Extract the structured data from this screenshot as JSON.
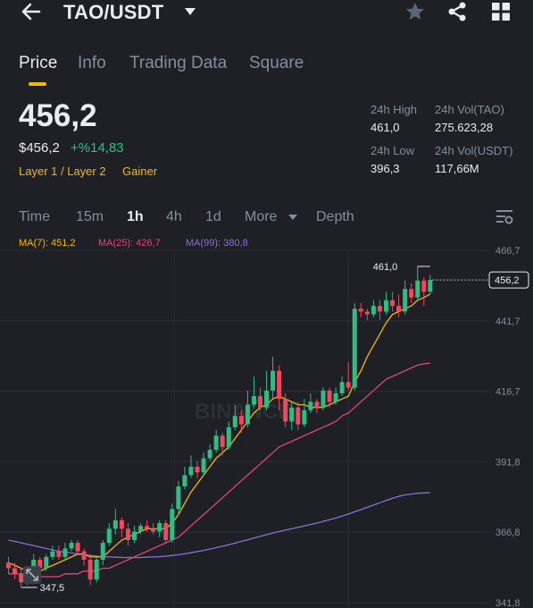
{
  "header": {
    "pair": "TAO/USDT"
  },
  "tabs": [
    {
      "label": "Price"
    },
    {
      "label": "Info"
    },
    {
      "label": "Trading Data"
    },
    {
      "label": "Square"
    }
  ],
  "price": {
    "last": "456,2",
    "usd": "$456,2",
    "change": "+%14,83",
    "tags": [
      "Layer 1 / Layer 2",
      "Gainer"
    ]
  },
  "stats": {
    "high_label": "24h High",
    "high_value": "461,0",
    "low_label": "24h Low",
    "low_value": "396,3",
    "vol_base_label": "24h Vol(TAO)",
    "vol_base_value": "275.623,28",
    "vol_quote_label": "24h Vol(USDT)",
    "vol_quote_value": "117,66M"
  },
  "intervals": {
    "items": [
      "Time",
      "15m",
      "1h",
      "4h",
      "1d",
      "More",
      "Depth"
    ],
    "selected": "1h"
  },
  "ma_legend": {
    "ma7": "MA(7): 451,2",
    "ma25": "MA(25): 426,7",
    "ma99": "MA(99): 380,8"
  },
  "colors": {
    "up": "#2ebd85",
    "down": "#f6465d",
    "accent": "#f0b90b",
    "ma7": "#f0b90b",
    "ma25": "#e0457b",
    "ma99": "#8c6fd6"
  },
  "chart_data": {
    "type": "candlestick",
    "y_axis_ticks": [
      "466,7",
      "441,7",
      "416,7",
      "391,8",
      "366,8",
      "341,8"
    ],
    "ylim": [
      341.8,
      466.7
    ],
    "high_marker": "461,0",
    "low_marker": "347,5",
    "last_price_label": "456,2",
    "watermark": "BINANCE",
    "candles": [
      [
        356,
        354,
        358,
        352
      ],
      [
        354,
        352,
        356,
        350
      ],
      [
        352,
        349,
        354,
        347.5
      ],
      [
        349,
        351,
        352,
        348
      ],
      [
        351,
        357,
        359,
        350
      ],
      [
        357,
        354,
        358,
        353
      ],
      [
        354,
        358,
        359,
        353
      ],
      [
        358,
        360,
        362,
        357
      ],
      [
        360,
        358,
        362,
        357
      ],
      [
        358,
        361,
        363,
        357
      ],
      [
        361,
        363,
        364,
        360
      ],
      [
        363,
        360,
        364,
        359
      ],
      [
        360,
        357,
        361,
        355
      ],
      [
        357,
        350,
        359,
        348
      ],
      [
        350,
        357,
        358,
        349
      ],
      [
        357,
        363,
        364,
        355
      ],
      [
        363,
        368,
        370,
        362
      ],
      [
        368,
        371,
        375,
        366
      ],
      [
        371,
        368,
        372,
        365
      ],
      [
        368,
        364,
        370,
        362
      ],
      [
        364,
        367,
        369,
        363
      ],
      [
        367,
        369,
        370,
        366
      ],
      [
        369,
        368,
        371,
        367
      ],
      [
        368,
        367,
        370,
        366
      ],
      [
        367,
        370,
        371,
        365
      ],
      [
        370,
        364,
        371,
        363
      ],
      [
        364,
        375,
        377,
        363
      ],
      [
        375,
        383,
        385,
        373
      ],
      [
        383,
        387,
        390,
        382
      ],
      [
        387,
        390,
        394,
        386
      ],
      [
        390,
        388,
        392,
        386
      ],
      [
        388,
        393,
        395,
        387
      ],
      [
        393,
        396,
        398,
        392
      ],
      [
        396,
        401,
        403,
        395
      ],
      [
        401,
        397,
        402,
        394
      ],
      [
        397,
        404,
        406,
        396
      ],
      [
        404,
        408,
        412,
        403
      ],
      [
        408,
        405,
        410,
        402
      ],
      [
        405,
        412,
        417,
        404
      ],
      [
        412,
        415,
        422,
        411
      ],
      [
        415,
        411,
        418,
        410
      ],
      [
        411,
        417,
        424,
        410
      ],
      [
        417,
        424,
        429,
        414
      ],
      [
        424,
        414,
        426,
        410
      ],
      [
        414,
        406,
        416,
        404
      ],
      [
        406,
        411,
        413,
        403
      ],
      [
        411,
        405,
        413,
        403
      ],
      [
        405,
        410,
        414,
        404
      ],
      [
        410,
        413,
        416,
        409
      ],
      [
        413,
        411,
        414,
        409
      ],
      [
        411,
        417,
        418,
        410
      ],
      [
        417,
        413,
        418,
        411
      ],
      [
        413,
        416,
        418,
        412
      ],
      [
        416,
        420,
        422,
        415
      ],
      [
        420,
        418,
        427,
        417
      ],
      [
        418,
        446,
        448,
        417
      ],
      [
        446,
        445,
        448,
        443
      ],
      [
        445,
        444,
        446,
        442
      ],
      [
        444,
        447,
        449,
        443
      ],
      [
        447,
        445,
        449,
        442
      ],
      [
        445,
        449,
        452,
        444
      ],
      [
        449,
        447,
        452,
        445
      ],
      [
        447,
        445,
        451,
        443
      ],
      [
        445,
        453,
        456,
        444
      ],
      [
        453,
        450,
        455,
        448
      ],
      [
        450,
        456,
        461,
        449
      ],
      [
        456,
        452,
        457,
        447
      ],
      [
        452,
        456.2,
        458,
        451
      ]
    ],
    "ma7": [
      356,
      355,
      354,
      353,
      353,
      353,
      354,
      355,
      356,
      357,
      358,
      359,
      359,
      358,
      358,
      358,
      360,
      362,
      364,
      365,
      366,
      367,
      368,
      368,
      368,
      368,
      370,
      373,
      377,
      381,
      384,
      387,
      390,
      393,
      395,
      397,
      400,
      403,
      406,
      409,
      411,
      412,
      414,
      415,
      414,
      413,
      412,
      412,
      411,
      411,
      411,
      412,
      413,
      414,
      415,
      420,
      424,
      429,
      433,
      437,
      441,
      444,
      445,
      446,
      447,
      449,
      450,
      451.2
    ],
    "ma25": [
      352,
      352,
      352,
      352,
      351,
      351,
      351,
      351,
      351,
      352,
      352,
      352,
      353,
      353,
      353,
      354,
      354,
      355,
      356,
      357,
      358,
      359,
      360,
      361,
      362,
      363,
      364,
      365,
      367,
      369,
      371,
      373,
      375,
      377,
      379,
      381,
      383,
      385,
      387,
      389,
      391,
      393,
      395,
      397,
      398,
      399,
      400,
      401,
      402,
      403,
      404,
      405,
      406,
      408,
      409,
      411,
      413,
      415,
      417,
      419,
      421,
      422,
      423,
      424,
      425,
      426,
      426.5,
      426.7
    ],
    "ma99": [
      364,
      363.5,
      363,
      362.5,
      362,
      361.5,
      361,
      360.5,
      360,
      359.7,
      359.4,
      359.1,
      358.8,
      358.5,
      358.3,
      358.1,
      358,
      357.9,
      357.8,
      357.8,
      357.8,
      357.8,
      357.9,
      358,
      358.1,
      358.3,
      358.5,
      358.8,
      359.1,
      359.5,
      359.9,
      360.3,
      360.8,
      361.3,
      361.8,
      362.3,
      362.9,
      363.5,
      364.1,
      364.7,
      365.3,
      365.9,
      366.5,
      367,
      367.5,
      368,
      368.5,
      369,
      369.5,
      370,
      370.6,
      371.2,
      371.8,
      372.5,
      373.2,
      374,
      374.8,
      375.6,
      376.4,
      377.2,
      378,
      378.8,
      379.5,
      380,
      380.3,
      380.6,
      380.7,
      380.8
    ]
  }
}
